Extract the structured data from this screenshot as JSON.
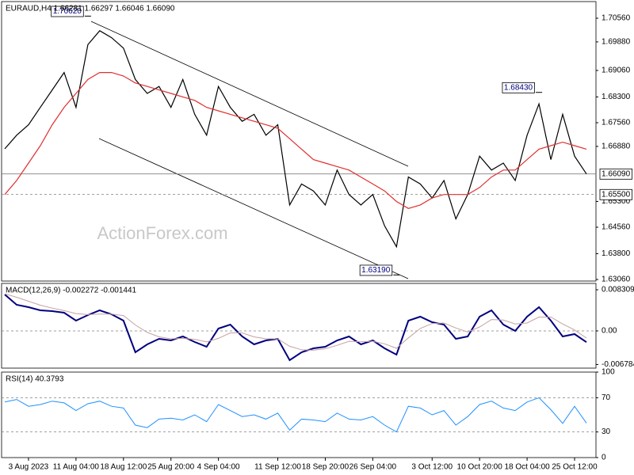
{
  "chart_data": [
    {
      "type": "line",
      "title": "EURAUD,H4  1.66281 1.66297 1.66046 1.66090",
      "watermark": "ActionForex.com",
      "categories": [
        null,
        null,
        "3 Aug 2023",
        null,
        null,
        null,
        "11 Aug 04:00",
        null,
        null,
        null,
        "18 Aug 12:00",
        null,
        null,
        null,
        "25 Aug 20:00",
        null,
        null,
        null,
        "4 Sep 04:00",
        null,
        null,
        null,
        null,
        "11 Sep 12:00",
        null,
        null,
        null,
        "18 Sep 20:00",
        null,
        null,
        null,
        "26 Sep 04:00",
        null,
        null,
        null,
        null,
        "3 Oct 12:00",
        null,
        null,
        null,
        "10 Oct 20:00",
        null,
        null,
        null,
        "18 Oct 04:00",
        null,
        null,
        null,
        "25 Oct 12:00",
        null
      ],
      "series": [
        {
          "color": "#000000",
          "values": [
            1.6681,
            1.672,
            1.675,
            1.68,
            1.685,
            1.69,
            1.68,
            1.698,
            1.702,
            1.7,
            1.697,
            1.688,
            1.684,
            1.686,
            1.68,
            1.688,
            1.678,
            1.672,
            1.686,
            1.68,
            1.676,
            1.678,
            1.672,
            1.675,
            1.652,
            1.658,
            1.656,
            1.652,
            1.662,
            1.655,
            1.652,
            1.655,
            1.646,
            1.64,
            1.66,
            1.658,
            1.654,
            1.659,
            1.648,
            1.655,
            1.666,
            1.662,
            1.664,
            1.659,
            1.672,
            1.681,
            1.665,
            1.678,
            1.666,
            1.6609
          ]
        },
        {
          "color": "#e03030",
          "values": [
            1.655,
            1.659,
            1.664,
            1.669,
            1.675,
            1.68,
            1.684,
            1.688,
            1.69,
            1.69,
            1.689,
            1.687,
            1.686,
            1.685,
            1.684,
            1.683,
            1.682,
            1.68,
            1.679,
            1.678,
            1.677,
            1.676,
            1.675,
            1.674,
            1.671,
            1.668,
            1.665,
            1.664,
            1.663,
            1.662,
            1.66,
            1.658,
            1.656,
            1.653,
            1.651,
            1.652,
            1.654,
            1.655,
            1.655,
            1.655,
            1.657,
            1.66,
            1.662,
            1.662,
            1.665,
            1.668,
            1.669,
            1.67,
            1.669,
            1.668
          ]
        }
      ],
      "ylim": [
        1.63015,
        1.71037
      ],
      "yticks": [
        {
          "value": 1.7056,
          "label": "1.70560"
        },
        {
          "value": 1.6988,
          "label": "1.69880"
        },
        {
          "value": 1.6906,
          "label": "1.69060"
        },
        {
          "value": 1.683,
          "label": "1.68300"
        },
        {
          "value": 1.6756,
          "label": "1.67560"
        },
        {
          "value": 1.6688,
          "label": "1.66880"
        },
        {
          "value": 1.653,
          "label": "1.65300"
        },
        {
          "value": 1.6456,
          "label": "1.64560"
        },
        {
          "value": 1.638,
          "label": "1.63800"
        },
        {
          "value": 1.6306,
          "label": "1.63060"
        }
      ],
      "hlines": [
        {
          "value": 1.6609,
          "label": "1.66090",
          "style": "solid"
        },
        {
          "value": 1.655,
          "label": "1.65500",
          "style": "dashed"
        }
      ],
      "annotations": [
        {
          "index": 7,
          "value": 1.7062,
          "label": "1.70620"
        },
        {
          "index": 45,
          "value": 1.6843,
          "label": "1.68430"
        },
        {
          "index": 33,
          "value": 1.6319,
          "label": "1.63190"
        }
      ]
    },
    {
      "type": "line",
      "title": "MACD(12,26,9) -0.002272 -0.001441",
      "series": [
        {
          "color": "#000080",
          "width": 2,
          "values": [
            0.00735,
            0.00527,
            0.00479,
            0.00415,
            0.00399,
            0.00368,
            0.00208,
            0.0032,
            0.00415,
            0.00336,
            0.00208,
            -0.00431,
            -0.00272,
            -0.0016,
            -0.00192,
            -0.00112,
            -0.00224,
            -0.0032,
            0.00048,
            0.00128,
            -0.00112,
            -0.00272,
            -0.00192,
            -0.0016,
            -0.00591,
            -0.00431,
            -0.00352,
            -0.0032,
            -0.00192,
            -0.00112,
            -0.00272,
            -0.00192,
            -0.00352,
            -0.00479,
            0.00208,
            0.00288,
            0.00176,
            0.00128,
            -0.0016,
            -0.00112,
            0.00288,
            0.00415,
            0.00128,
            0,
            0.00288,
            0.00479,
            0.00208,
            -0.00112,
            -0.00064,
            -0.002272
          ]
        },
        {
          "color": "#c8a0a0",
          "width": 1,
          "values": [
            0.0075,
            0.0068,
            0.006,
            0.0052,
            0.0046,
            0.0041,
            0.0035,
            0.0033,
            0.0034,
            0.0034,
            0.0031,
            0.0012,
            -0.0003,
            -0.0012,
            -0.0016,
            -0.0015,
            -0.0017,
            -0.0022,
            -0.0015,
            -0.0004,
            -0.0004,
            -0.0012,
            -0.0016,
            -0.0016,
            -0.0031,
            -0.0038,
            -0.0039,
            -0.0036,
            -0.0029,
            -0.0021,
            -0.0022,
            -0.0021,
            -0.0026,
            -0.0035,
            -0.0014,
            0.0005,
            0.0015,
            0.0016,
            0.0006,
            -0.0002,
            0.0008,
            0.0023,
            0.0022,
            0.0014,
            0.0016,
            0.0028,
            0.0028,
            0.0014,
            0.0002,
            -0.001441
          ]
        }
      ],
      "ylim": [
        -0.00751,
        0.00959
      ],
      "yticks": [
        0.008309,
        {
          "value": 0,
          "label": "0.00"
        },
        -0.006784
      ],
      "hlines": [
        {
          "value": 0,
          "style": "dashed"
        }
      ]
    },
    {
      "type": "line",
      "title": "RSI(14) 40.3793",
      "series": [
        {
          "color": "#1e90ff",
          "width": 1,
          "values": [
            65,
            68,
            60,
            62,
            66,
            64,
            55,
            63,
            66,
            60,
            58,
            38,
            35,
            45,
            46,
            44,
            50,
            42,
            62,
            55,
            48,
            50,
            45,
            52,
            32,
            45,
            44,
            42,
            52,
            45,
            44,
            48,
            38,
            30,
            60,
            58,
            50,
            55,
            38,
            48,
            62,
            66,
            58,
            55,
            65,
            70,
            56,
            40,
            60,
            40.3793
          ]
        }
      ],
      "ylim": [
        0,
        100
      ],
      "yticks": [
        100,
        70,
        30,
        0
      ],
      "hlines": [
        {
          "value": 70,
          "style": "dashed"
        },
        {
          "value": 30,
          "style": "dashed"
        }
      ]
    }
  ]
}
